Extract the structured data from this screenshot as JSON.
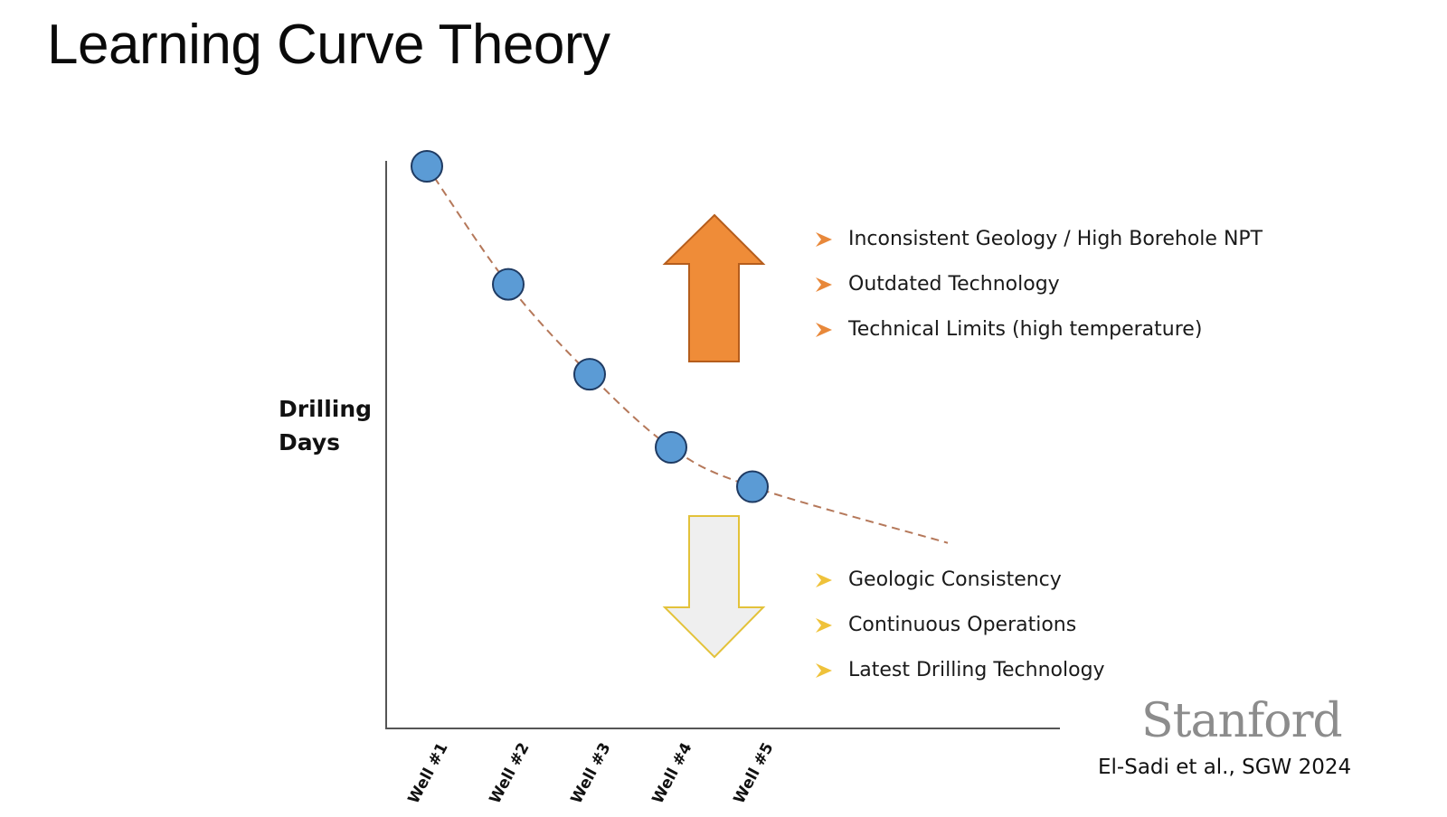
{
  "slide": {
    "title": "Learning Curve Theory",
    "citation": "El-Sadi et al., SGW 2024",
    "logo_text": "Stanford"
  },
  "chart_data": {
    "type": "scatter",
    "categories": [
      "Well #1",
      "Well #2",
      "Well #3",
      "Well #4",
      "Well #5"
    ],
    "ylabel": [
      "Drilling",
      "Days"
    ],
    "ylabel_text": "Drilling Days",
    "xlabel": "",
    "values": [
      100,
      79,
      63,
      50,
      43
    ],
    "ylim": [
      0,
      102
    ],
    "trend_line": {
      "style": "dashed",
      "extends_beyond_last_point": true,
      "extrapolated_end": {
        "x": 7.4,
        "y": 33
      }
    },
    "markers": {
      "fill": "#5b9bd5",
      "stroke": "#1f3b63"
    },
    "trend_color": "#b5785a",
    "grid": false,
    "legend": "none"
  },
  "annotations": {
    "up_arrow": {
      "color": "#ef8c38",
      "stroke": "#b55d1c",
      "direction": "up"
    },
    "down_arrow": {
      "color": "#efefef",
      "stroke": "#e3c23a",
      "direction": "down"
    },
    "up_factors": [
      "Inconsistent Geology / High Borehole NPT",
      "Outdated Technology",
      "Technical Limits (high temperature)"
    ],
    "down_factors": [
      "Geologic Consistency",
      "Continuous Operations",
      "Latest Drilling Technology"
    ],
    "up_bullet_color": "#e8883a",
    "down_bullet_color": "#efc23a",
    "bullet_icon": "arrowhead-bullet-icon"
  }
}
